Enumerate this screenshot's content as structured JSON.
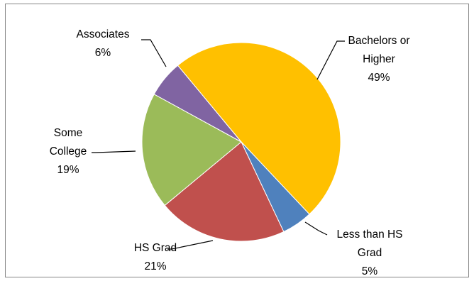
{
  "chart_data": {
    "type": "pie",
    "title": "",
    "start_angle_deg": -39.7,
    "direction": "clockwise",
    "slices": [
      {
        "label_lines": [
          "Bachelors or",
          "Higher"
        ],
        "pct_label": "49%",
        "value": 49,
        "color": "#FFC000"
      },
      {
        "label_lines": [
          "Less than HS",
          "Grad"
        ],
        "pct_label": "5%",
        "value": 5,
        "color": "#4F81BD"
      },
      {
        "label_lines": [
          "HS Grad"
        ],
        "pct_label": "21%",
        "value": 21,
        "color": "#C0504D"
      },
      {
        "label_lines": [
          "Some",
          "College"
        ],
        "pct_label": "19%",
        "value": 19,
        "color": "#9BBB59"
      },
      {
        "label_lines": [
          "Associates"
        ],
        "pct_label": "6%",
        "value": 6,
        "color": "#8064A2"
      }
    ],
    "legend": "none",
    "data_labels": "outside-with-leader-lines"
  }
}
